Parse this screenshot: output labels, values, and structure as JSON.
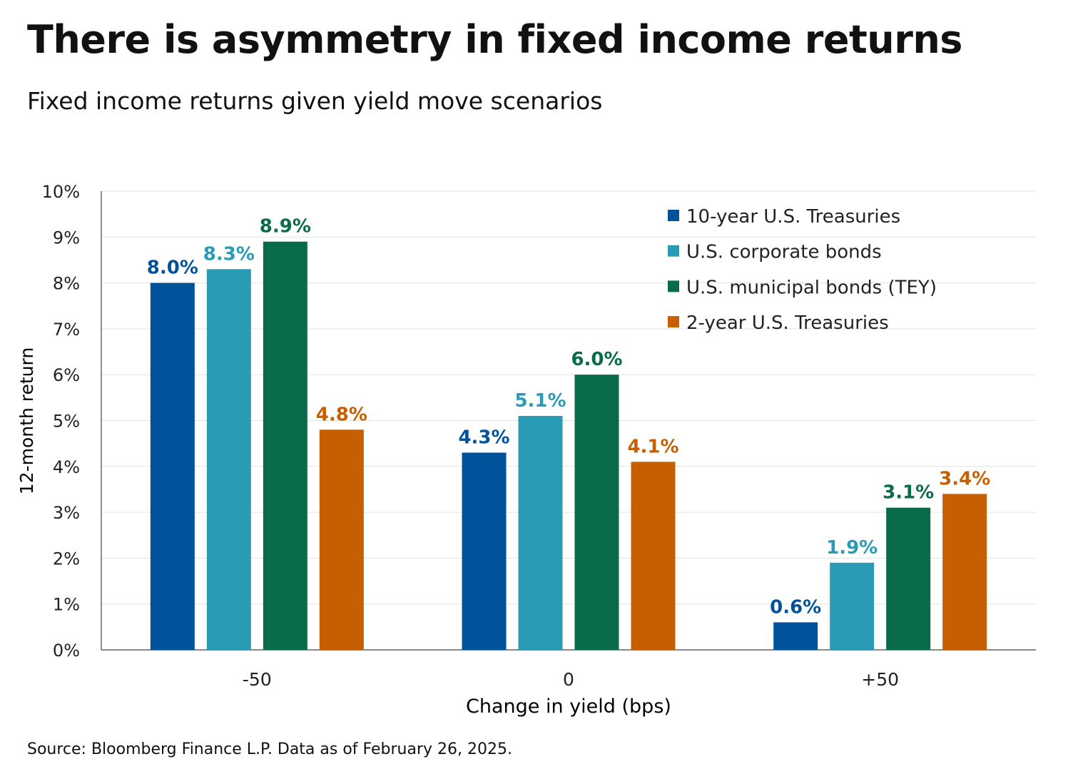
{
  "title": "There is asymmetry in fixed income returns",
  "subtitle": "Fixed income returns given yield move scenarios",
  "source": "Source: Bloomberg Finance L.P. Data as of February 26, 2025.",
  "chart_data": {
    "type": "bar",
    "categories": [
      "-50",
      "0",
      "+50"
    ],
    "xlabel": "Change in yield (bps)",
    "ylabel": "12-month return",
    "ylim": [
      0,
      10
    ],
    "yticks": [
      "0%",
      "1%",
      "2%",
      "3%",
      "4%",
      "5%",
      "6%",
      "7%",
      "8%",
      "9%",
      "10%"
    ],
    "grid": true,
    "legend_position": "top-right",
    "series": [
      {
        "name": "10-year U.S. Treasuries",
        "color": "#00529B",
        "values": [
          8.0,
          4.3,
          0.6
        ],
        "labels": [
          "8.0%",
          "4.3%",
          "0.6%"
        ]
      },
      {
        "name": "U.S. corporate bonds",
        "color": "#2A9BB5",
        "values": [
          8.3,
          5.1,
          1.9
        ],
        "labels": [
          "8.3%",
          "5.1%",
          "1.9%"
        ]
      },
      {
        "name": "U.S. municipal bonds (TEY)",
        "color": "#0A6B4A",
        "values": [
          8.9,
          6.0,
          3.1
        ],
        "labels": [
          "8.9%",
          "6.0%",
          "3.1%"
        ]
      },
      {
        "name": "2-year U.S. Treasuries",
        "color": "#C65F00",
        "values": [
          4.8,
          4.1,
          3.4
        ],
        "labels": [
          "4.8%",
          "4.1%",
          "3.4%"
        ]
      }
    ]
  }
}
